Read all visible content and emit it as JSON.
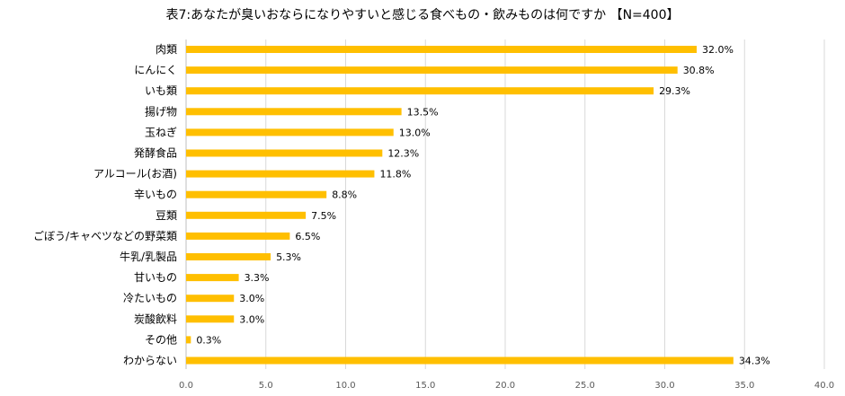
{
  "title": "表7:あなたが臭いおならになりやすいと感じる食べもの・飲みものは何ですか 【N=400】",
  "colors": {
    "bar": "#FFBF00",
    "grid": "#D9D9D9",
    "axis": "#BFBFBF"
  },
  "chart_data": {
    "type": "bar",
    "orientation": "horizontal",
    "title": "表7:あなたが臭いおならになりやすいと感じる食べもの・飲みものは何ですか 【N=400】",
    "categories": [
      "肉類",
      "にんにく",
      "いも類",
      "揚げ物",
      "玉ねぎ",
      "発酵食品",
      "アルコール(お酒)",
      "辛いもの",
      "豆類",
      "ごぼう/キャベツなどの野菜類",
      "牛乳/乳製品",
      "甘いもの",
      "冷たいもの",
      "炭酸飲料",
      "その他",
      "わからない"
    ],
    "values": [
      32.0,
      30.8,
      29.3,
      13.5,
      13.0,
      12.3,
      11.8,
      8.8,
      7.5,
      6.5,
      5.3,
      3.3,
      3.0,
      3.0,
      0.3,
      34.3
    ],
    "value_labels": [
      "32.0%",
      "30.8%",
      "29.3%",
      "13.5%",
      "13.0%",
      "12.3%",
      "11.8%",
      "8.8%",
      "7.5%",
      "6.5%",
      "5.3%",
      "3.3%",
      "3.0%",
      "3.0%",
      "0.3%",
      "34.3%"
    ],
    "xlim": [
      0,
      40
    ],
    "ticks": [
      "0.0",
      "5.0",
      "10.0",
      "15.0",
      "20.0",
      "25.0",
      "30.0",
      "35.0",
      "40.0"
    ],
    "tick_values": [
      0,
      5,
      10,
      15,
      20,
      25,
      30,
      35,
      40
    ],
    "grid": true
  }
}
